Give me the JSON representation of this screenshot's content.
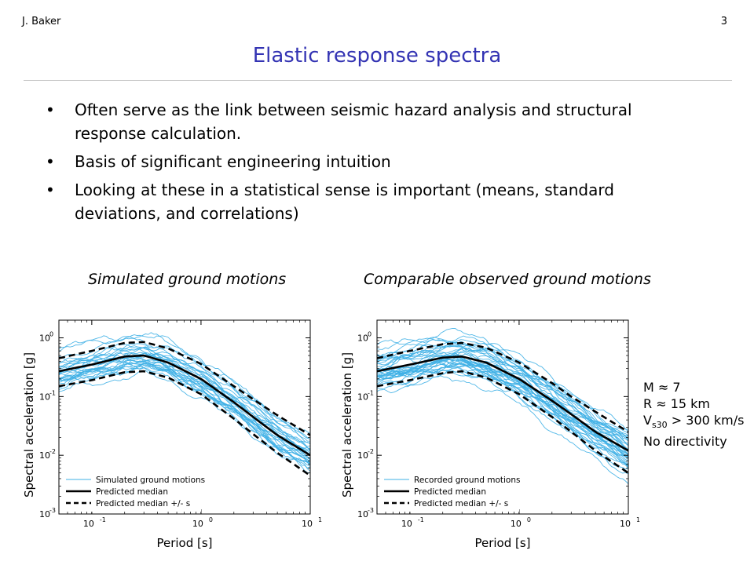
{
  "header": {
    "author": "J. Baker",
    "page_number": "3"
  },
  "slide": {
    "title": "Elastic response spectra",
    "bullets": [
      "Often serve as the link between seismic hazard analysis and structural response calculation.",
      "Basis of significant engineering intuition",
      "Looking at these in a statistical sense is important (means, standard deviations, and correlations)"
    ],
    "bullet_symbol": "•"
  },
  "captions": {
    "left": "Simulated ground motions",
    "right": "Comparable observed ground motions"
  },
  "parameters": {
    "m": "M ≈ 7",
    "r": "R ≈ 15 km",
    "vs_main": "V",
    "vs_sub": "s30",
    "vs_rest": " > 300 km/s",
    "directivity": "No directivity"
  },
  "chart_data": [
    {
      "type": "line",
      "title": "Simulated ground motions",
      "xlabel": "Period [s]",
      "ylabel": "Spectral acceleration [g]",
      "x_scale": "log",
      "y_scale": "log",
      "xlim": [
        0.05,
        10
      ],
      "ylim": [
        0.001,
        2
      ],
      "x_ticks": [
        {
          "v": 0.1,
          "b": "10",
          "e": "-1"
        },
        {
          "v": 1,
          "b": "10",
          "e": "0"
        },
        {
          "v": 10,
          "b": "10",
          "e": "1"
        }
      ],
      "y_ticks": [
        {
          "v": 0.001,
          "b": "10",
          "e": "-3"
        },
        {
          "v": 0.01,
          "b": "10",
          "e": "-2"
        },
        {
          "v": 0.1,
          "b": "10",
          "e": "-1"
        },
        {
          "v": 1,
          "b": "10",
          "e": "0"
        }
      ],
      "x": [
        0.05,
        0.1,
        0.2,
        0.3,
        0.5,
        1,
        2,
        3,
        5,
        10
      ],
      "median": [
        0.27,
        0.35,
        0.48,
        0.5,
        0.38,
        0.2,
        0.08,
        0.045,
        0.022,
        0.01
      ],
      "plus_sigma": [
        0.45,
        0.6,
        0.82,
        0.85,
        0.66,
        0.36,
        0.15,
        0.09,
        0.048,
        0.022
      ],
      "minus_sigma": [
        0.15,
        0.19,
        0.26,
        0.27,
        0.21,
        0.11,
        0.042,
        0.023,
        0.011,
        0.0045
      ],
      "individual_curves": 30,
      "legend": {
        "position": "bottom-left",
        "entries": [
          "Simulated ground motions",
          "Predicted median",
          "Predicted median +/-   s"
        ]
      },
      "grid": false,
      "colors": {
        "records": "#3fb0e6",
        "median": "#000000"
      }
    },
    {
      "type": "line",
      "title": "Comparable observed ground motions",
      "xlabel": "Period [s]",
      "ylabel": "Spectral acceleration [g]",
      "x_scale": "log",
      "y_scale": "log",
      "xlim": [
        0.05,
        10
      ],
      "ylim": [
        0.001,
        2
      ],
      "x_ticks": [
        {
          "v": 0.1,
          "b": "10",
          "e": "-1"
        },
        {
          "v": 1,
          "b": "10",
          "e": "0"
        },
        {
          "v": 10,
          "b": "10",
          "e": "1"
        }
      ],
      "y_ticks": [
        {
          "v": 0.001,
          "b": "10",
          "e": "-3"
        },
        {
          "v": 0.01,
          "b": "10",
          "e": "-2"
        },
        {
          "v": 0.1,
          "b": "10",
          "e": "-1"
        },
        {
          "v": 1,
          "b": "10",
          "e": "0"
        }
      ],
      "x": [
        0.05,
        0.1,
        0.2,
        0.3,
        0.5,
        1,
        2,
        3,
        5,
        10
      ],
      "median": [
        0.27,
        0.35,
        0.46,
        0.48,
        0.38,
        0.2,
        0.085,
        0.05,
        0.025,
        0.012
      ],
      "plus_sigma": [
        0.45,
        0.6,
        0.78,
        0.82,
        0.68,
        0.38,
        0.17,
        0.1,
        0.055,
        0.025
      ],
      "minus_sigma": [
        0.15,
        0.19,
        0.25,
        0.27,
        0.21,
        0.11,
        0.045,
        0.025,
        0.012,
        0.005
      ],
      "individual_curves": 40,
      "legend": {
        "position": "bottom-left",
        "entries": [
          "Recorded ground motions",
          "Predicted median",
          "Predicted median +/-   s"
        ]
      },
      "grid": false,
      "colors": {
        "records": "#3fb0e6",
        "median": "#000000"
      }
    }
  ]
}
